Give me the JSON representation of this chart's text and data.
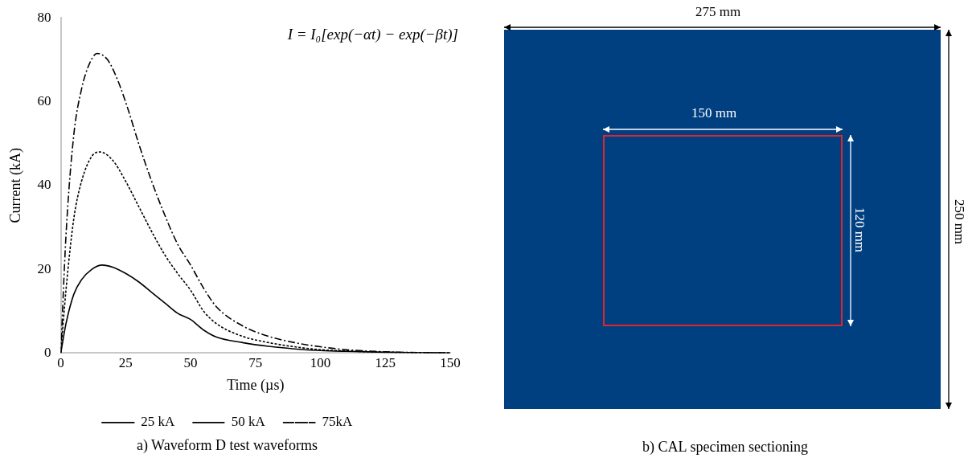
{
  "chart_data": [
    {
      "type": "line",
      "title": "a) Waveform D test waveforms",
      "xlabel": "Time (µs)",
      "ylabel": "Current (kA)",
      "annotations": [
        "I = I₀[exp(−αt) − exp(−βt)]"
      ],
      "xlim": [
        0,
        150
      ],
      "xticks": [
        0,
        25,
        50,
        75,
        100,
        125,
        150
      ],
      "ylim": [
        0,
        80
      ],
      "yticks": [
        0,
        20,
        40,
        60,
        80
      ],
      "grid": false,
      "legend": "bottom",
      "marker": "none",
      "series": [
        {
          "name": "25 kA",
          "color": "#000000",
          "line_style": "solid",
          "x": [
            0,
            2,
            5,
            8,
            12,
            16,
            20,
            25,
            30,
            35,
            40,
            45,
            50,
            55,
            60,
            70,
            80,
            90,
            100,
            110,
            125,
            150
          ],
          "values": [
            0,
            7,
            14,
            17.5,
            20,
            21,
            20.5,
            19,
            17,
            14.5,
            12,
            9.5,
            8,
            5.5,
            3.8,
            2.5,
            1.6,
            1,
            0.6,
            0.4,
            0.2,
            0
          ]
        },
        {
          "name": "50 kA",
          "color": "#000000",
          "line_style": "dotted",
          "x": [
            0,
            2,
            5,
            8,
            12,
            15,
            20,
            25,
            30,
            35,
            40,
            45,
            50,
            55,
            60,
            70,
            80,
            90,
            100,
            110,
            125,
            150
          ],
          "values": [
            0,
            15,
            32,
            41,
            47,
            48,
            46,
            41,
            35,
            29,
            23.5,
            19,
            15,
            10,
            7,
            4,
            2.5,
            1.5,
            0.8,
            0.5,
            0.2,
            0
          ]
        },
        {
          "name": "75kA",
          "color": "#000000",
          "line_style": "dashed",
          "x": [
            0,
            2,
            5,
            8,
            11,
            14,
            18,
            22,
            26,
            30,
            35,
            40,
            45,
            50,
            55,
            60,
            70,
            80,
            90,
            100,
            110,
            125,
            150
          ],
          "values": [
            0,
            28,
            52,
            63,
            69,
            71.5,
            70,
            65,
            58,
            50,
            41,
            33,
            26,
            21,
            15.5,
            11,
            6.5,
            4,
            2.5,
            1.5,
            0.8,
            0.3,
            0
          ]
        }
      ]
    },
    {
      "type": "other",
      "title": "b) CAL specimen sectioning",
      "annotations": [
        "275 mm",
        "150 mm",
        "120 mm",
        "250 mm"
      ]
    }
  ]
}
